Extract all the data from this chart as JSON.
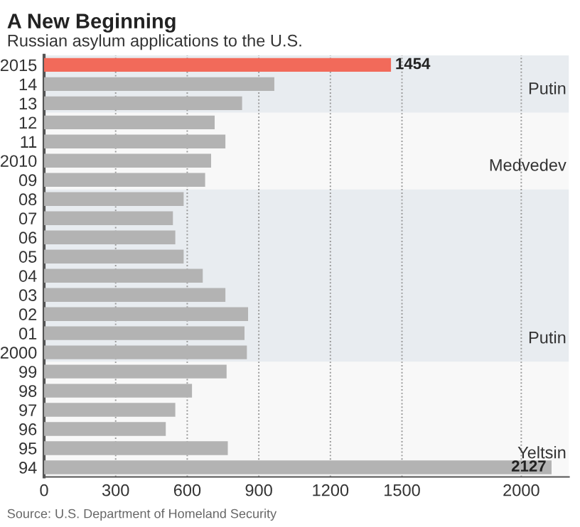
{
  "chart_data": {
    "type": "bar",
    "orientation": "horizontal",
    "title": "A New Beginning",
    "subtitle": "Russian asylum applications to the U.S.",
    "categories": [
      "2015",
      "14",
      "13",
      "12",
      "11",
      "2010",
      "09",
      "08",
      "07",
      "06",
      "05",
      "04",
      "03",
      "02",
      "01",
      "2000",
      "99",
      "98",
      "97",
      "96",
      "95",
      "94"
    ],
    "values": [
      1454,
      965,
      830,
      715,
      760,
      700,
      675,
      585,
      540,
      550,
      585,
      665,
      760,
      855,
      840,
      850,
      765,
      620,
      550,
      510,
      770,
      2127
    ],
    "colors": [
      "#f26a5a",
      "#b3b3b3",
      "#b3b3b3",
      "#b3b3b3",
      "#b3b3b3",
      "#b3b3b3",
      "#b3b3b3",
      "#b3b3b3",
      "#b3b3b3",
      "#b3b3b3",
      "#b3b3b3",
      "#b3b3b3",
      "#b3b3b3",
      "#b3b3b3",
      "#b3b3b3",
      "#b3b3b3",
      "#b3b3b3",
      "#b3b3b3",
      "#b3b3b3",
      "#b3b3b3",
      "#b3b3b3",
      "#b3b3b3"
    ],
    "value_labels": [
      "1454",
      null,
      null,
      null,
      null,
      null,
      null,
      null,
      null,
      null,
      null,
      null,
      null,
      null,
      null,
      null,
      null,
      null,
      null,
      null,
      null,
      "2127"
    ],
    "xlim": [
      0,
      2200
    ],
    "xticks": [
      0,
      300,
      600,
      900,
      1200,
      1500,
      2000
    ],
    "grid": "x",
    "bands": [
      {
        "axis": "y",
        "from": "2015",
        "to": "13",
        "label": "Putin",
        "color": "#e8ecf0"
      },
      {
        "axis": "y",
        "from": "12",
        "to": "09",
        "label": "Medvedev",
        "color": "#f8f8f8"
      },
      {
        "axis": "y",
        "from": "08",
        "to": "2000",
        "label": "Putin",
        "color": "#e8ecf0"
      },
      {
        "axis": "y",
        "from": "99",
        "to": "94",
        "label": "Yeltsin",
        "color": "#f8f8f8"
      }
    ],
    "annotations": [
      "Source: U.S. Department of Homeland Security"
    ]
  }
}
